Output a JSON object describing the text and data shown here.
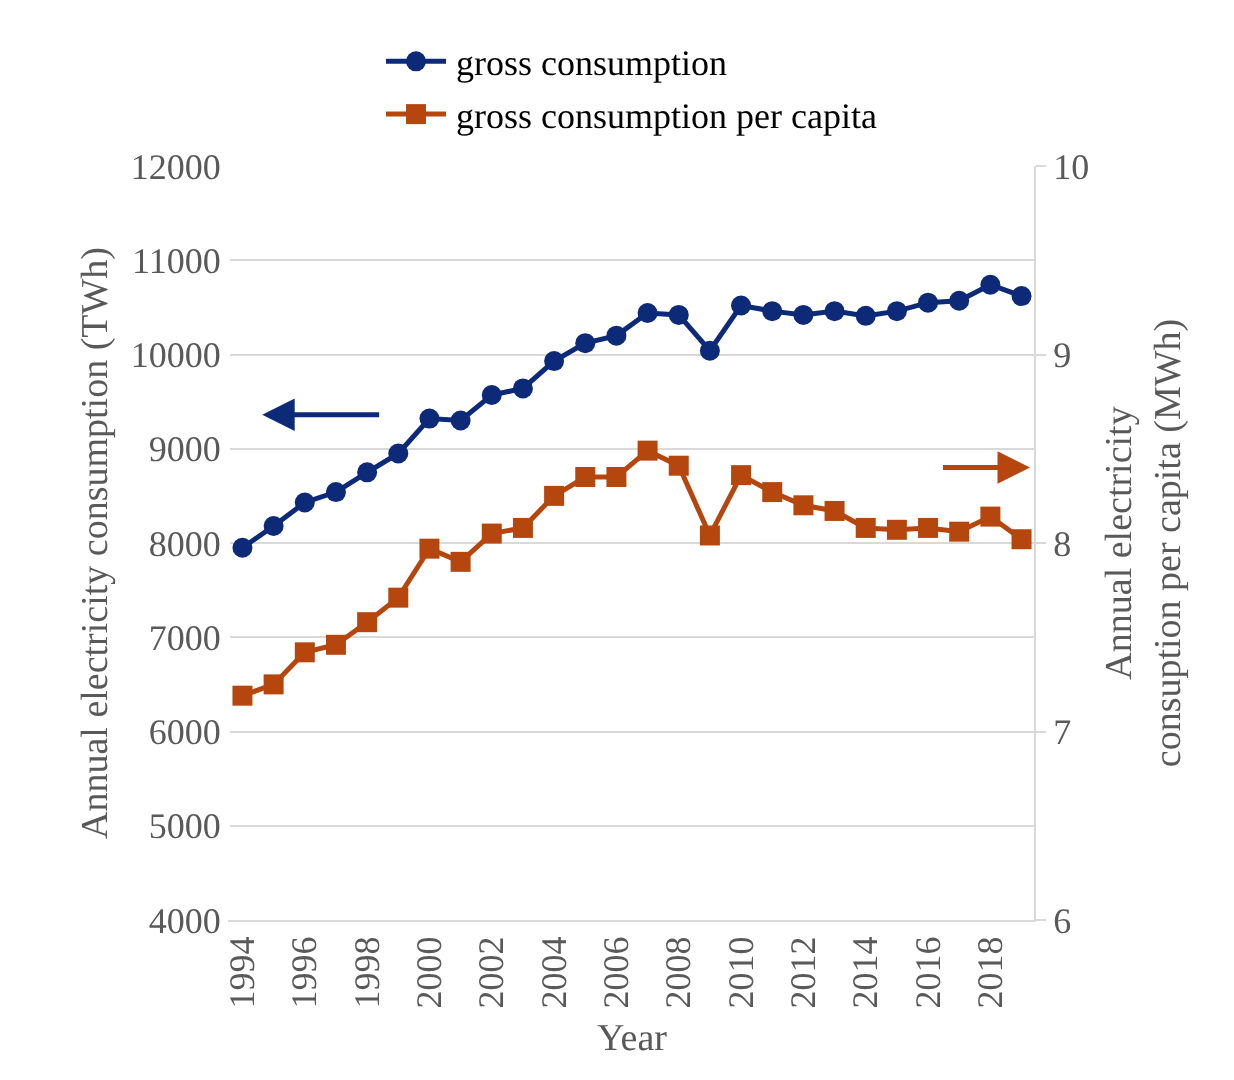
{
  "chart_data": {
    "type": "line",
    "xlabel": "Year",
    "ylabel": "Annual electricity consumption (TWh)",
    "y2label": "Annual electricity consuption per capita (MWh)",
    "x": [
      1994,
      1995,
      1996,
      1997,
      1998,
      1999,
      2000,
      2001,
      2002,
      2003,
      2004,
      2005,
      2006,
      2007,
      2008,
      2009,
      2010,
      2011,
      2012,
      2013,
      2014,
      2015,
      2016,
      2017,
      2018,
      2019
    ],
    "series": [
      {
        "name": "gross consumption",
        "color": "#0d2a78",
        "marker": "circle",
        "values": [
          7950,
          8180,
          8430,
          8540,
          8750,
          8950,
          9320,
          9300,
          9570,
          9640,
          9930,
          10120,
          10200,
          10440,
          10420,
          10040,
          10520,
          10460,
          10420,
          10460,
          10410,
          10460,
          10550,
          10570,
          10740,
          10620
        ]
      },
      {
        "name": "gross consumption per capita",
        "color": "#b5470e",
        "marker": "square",
        "axis": "y2",
        "values": [
          7.19,
          7.25,
          7.42,
          7.46,
          7.58,
          7.71,
          7.97,
          7.9,
          8.05,
          8.08,
          8.25,
          8.35,
          8.35,
          8.49,
          8.41,
          8.04,
          8.36,
          8.27,
          8.2,
          8.17,
          8.08,
          8.07,
          8.08,
          8.06,
          8.14,
          8.02
        ]
      }
    ],
    "xlim": [
      1993.6,
      2019.4
    ],
    "xticks": [
      1994,
      1996,
      1998,
      2000,
      2002,
      2004,
      2006,
      2008,
      2010,
      2012,
      2014,
      2016,
      2018
    ],
    "ylim": [
      4000,
      12000
    ],
    "yticks": [
      4000,
      5000,
      6000,
      7000,
      8000,
      9000,
      10000,
      11000,
      12000
    ],
    "y2lim": [
      6,
      10
    ],
    "y2ticks": [
      6,
      7,
      8,
      9,
      10
    ],
    "grid": "y",
    "legend": "top",
    "line_style": "solid"
  }
}
